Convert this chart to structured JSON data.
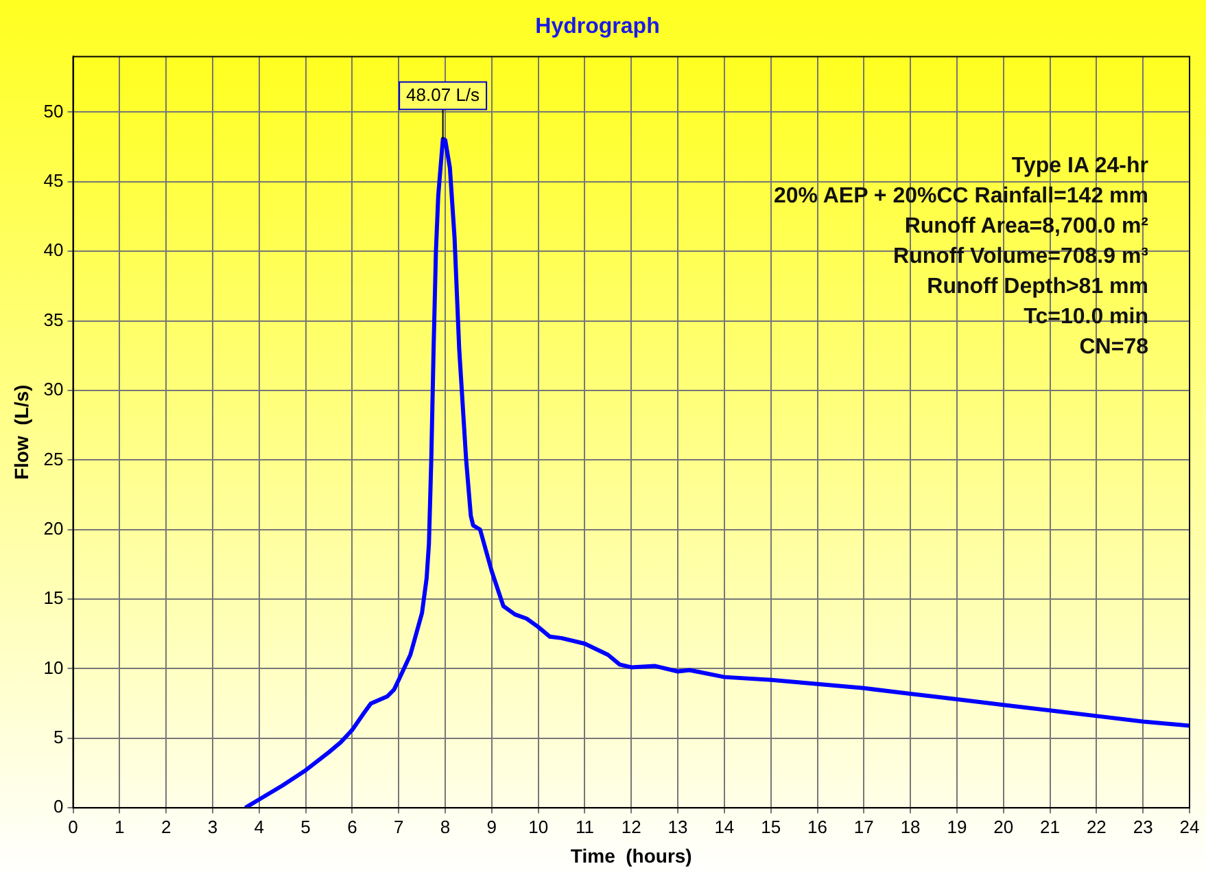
{
  "chart_data": {
    "type": "line",
    "title": "Hydrograph",
    "xlabel": "Time  (hours)",
    "ylabel": "Flow  (L/s)",
    "x": [
      3.7,
      3.8,
      4,
      4.5,
      5,
      5.5,
      5.75,
      6,
      6.25,
      6.4,
      6.75,
      6.9,
      7,
      7.25,
      7.5,
      7.6,
      7.65,
      7.7,
      7.75,
      7.8,
      7.85,
      7.95,
      8,
      8.1,
      8.2,
      8.3,
      8.45,
      8.55,
      8.6,
      8.75,
      9,
      9.25,
      9.5,
      9.75,
      10,
      10.25,
      10.5,
      11,
      11.5,
      11.75,
      12,
      12.5,
      13,
      13.25,
      14,
      15,
      16,
      17,
      18,
      19,
      20,
      21,
      22,
      23,
      24
    ],
    "series": [
      {
        "color": "#0000ff",
        "values": [
          0,
          0.2,
          0.6,
          1.6,
          2.7,
          4,
          4.7,
          5.6,
          6.8,
          7.5,
          8,
          8.5,
          9.2,
          11,
          14,
          16.5,
          19,
          25,
          33,
          40,
          44,
          48.07,
          48,
          46,
          41,
          33,
          25,
          21,
          20.3,
          20,
          17,
          14.5,
          13.9,
          13.6,
          13,
          12.3,
          12.2,
          11.8,
          11,
          10.3,
          10.1,
          10.2,
          9.8,
          9.9,
          9.4,
          9.2,
          8.9,
          8.6,
          8.2,
          7.8,
          7.4,
          7,
          6.6,
          6.2,
          5.9
        ]
      }
    ],
    "xlim": [
      0,
      24
    ],
    "xticks": [
      0,
      1,
      2,
      3,
      4,
      5,
      6,
      7,
      8,
      9,
      10,
      11,
      12,
      13,
      14,
      15,
      16,
      17,
      18,
      19,
      20,
      21,
      22,
      23,
      24
    ],
    "ylim": [
      0,
      54
    ],
    "yticks": [
      0,
      5,
      10,
      15,
      20,
      25,
      30,
      35,
      40,
      45,
      50
    ],
    "grid": true,
    "legend": false,
    "marker": "none",
    "line_style": "solid",
    "annotations": [
      {
        "text": "48.07 L/s",
        "x": 7.95,
        "y": 48.07
      },
      "Type IA 24-hr",
      "20% AEP + 20%CC Rainfall=142 mm",
      "Runoff Area=8,700.0 m²",
      "Runoff Volume=708.9 m³",
      "Runoff Depth>81 mm",
      "Tc=10.0 min",
      "CN=78"
    ]
  }
}
